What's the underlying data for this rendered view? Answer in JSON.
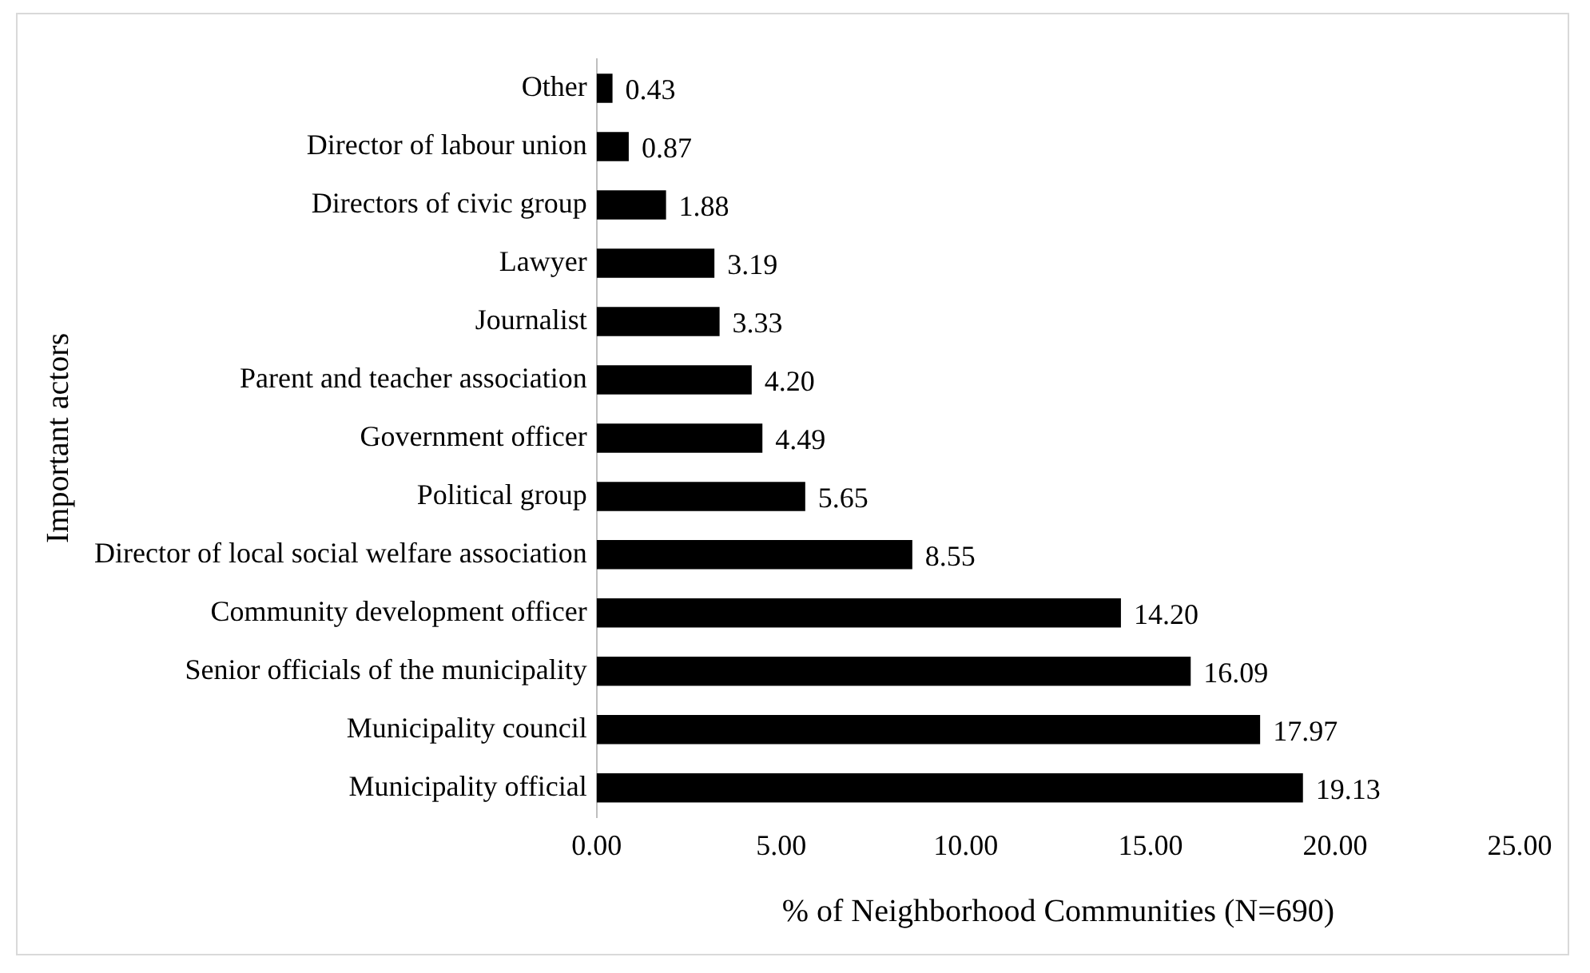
{
  "chart_data": {
    "type": "bar",
    "orientation": "horizontal",
    "xlabel": "% of Neighborhood Communities (N=690)",
    "ylabel": "Important actors",
    "categories": [
      "Other",
      "Director of labour union",
      "Directors of civic group",
      "Lawyer",
      "Journalist",
      "Parent and teacher association",
      "Government officer",
      "Political group",
      "Director of local social welfare association",
      "Community development officer",
      "Senior officials of the municipality",
      "Municipality council",
      "Municipality official"
    ],
    "values": [
      0.43,
      0.87,
      1.88,
      3.19,
      3.33,
      4.2,
      4.49,
      5.65,
      8.55,
      14.2,
      16.09,
      17.97,
      19.13
    ],
    "value_labels": [
      "0.43",
      "0.87",
      "1.88",
      "3.19",
      "3.33",
      "4.20",
      "4.49",
      "5.65",
      "8.55",
      "14.20",
      "16.09",
      "17.97",
      "19.13"
    ],
    "color": "#000000",
    "xlim": [
      0,
      25
    ],
    "xticks": [
      {
        "value": 0,
        "label": "0.00"
      },
      {
        "value": 5,
        "label": "5.00"
      },
      {
        "value": 10,
        "label": "10.00"
      },
      {
        "value": 15,
        "label": "15.00"
      },
      {
        "value": 20,
        "label": "20.00"
      },
      {
        "value": 25,
        "label": "25.00"
      }
    ],
    "grid": false,
    "legend": false
  }
}
